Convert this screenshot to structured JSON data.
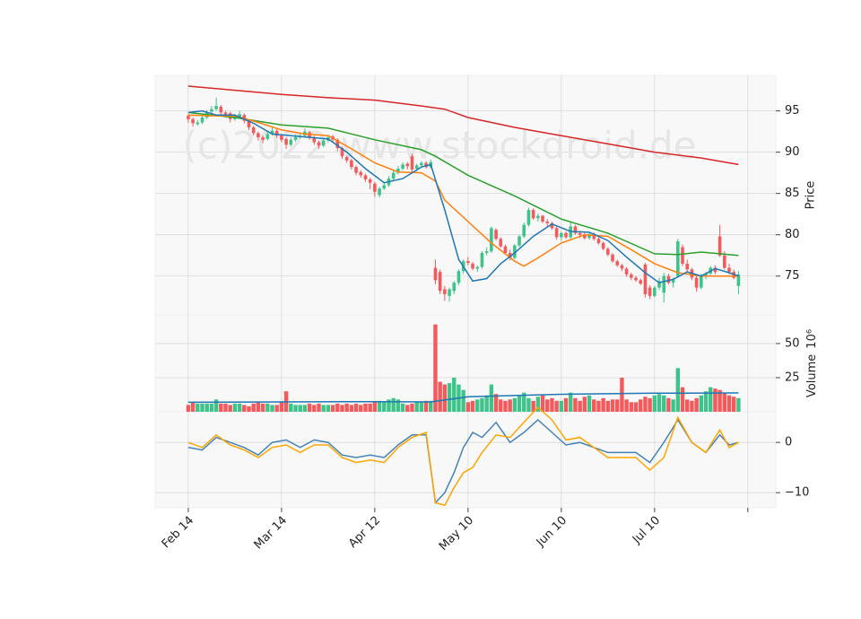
{
  "chart_data": {
    "type": "candlestick",
    "watermark": "(c)2022 www.stockdroid.de",
    "grid": true,
    "xlim": [
      -7.1,
      126
    ],
    "xticks": [
      {
        "value": 0,
        "label": "Feb 14"
      },
      {
        "value": 20,
        "label": "Mar 14"
      },
      {
        "value": 40,
        "label": "Apr 12"
      },
      {
        "value": 60,
        "label": "May 10"
      },
      {
        "value": 80,
        "label": "Jun 10"
      },
      {
        "value": 100,
        "label": "Jul 10"
      },
      {
        "value": 120,
        "label": null
      }
    ],
    "up_color": "#3ec48b",
    "down_color": "#f4595c",
    "candles": {
      "open": [
        94.4,
        94.0,
        93.4,
        93.6,
        94.2,
        94.9,
        95.2,
        95.5,
        94.8,
        94.7,
        94.0,
        94.3,
        94.5,
        93.8,
        93.0,
        92.3,
        91.8,
        91.6,
        92.2,
        92.6,
        92.0,
        91.6,
        90.9,
        91.5,
        91.8,
        92.0,
        92.4,
        91.8,
        91.2,
        90.8,
        91.4,
        91.9,
        91.5,
        90.5,
        89.4,
        89.0,
        88.2,
        87.6,
        87.2,
        86.7,
        86.2,
        84.8,
        85.6,
        86.0,
        86.8,
        87.5,
        88.0,
        88.6,
        89.5,
        88.0,
        88.4,
        88.7,
        88.2,
        76.0,
        75.5,
        73.4,
        72.6,
        73.2,
        74.2,
        75.6,
        76.8,
        76.5,
        75.9,
        76.1,
        77.8,
        78.0,
        80.6,
        79.5,
        78.6,
        77.8,
        77.2,
        78.7,
        79.8,
        81.2,
        83.0,
        82.0,
        82.3,
        81.6,
        81.4,
        80.8,
        79.7,
        80.2,
        79.7,
        81.0,
        80.2,
        80.0,
        79.6,
        80.1,
        79.5,
        79.0,
        78.3,
        77.6,
        76.8,
        76.3,
        75.9,
        75.2,
        74.8,
        74.5,
        76.4,
        73.6,
        72.6,
        73.6,
        73.0,
        75.0,
        74.2,
        75.0,
        78.5,
        76.5,
        75.8,
        74.8,
        73.6,
        75.0,
        75.3,
        76.0,
        79.8,
        77.5,
        76.0,
        75.5,
        73.8
      ],
      "high": [
        94.6,
        94.2,
        93.9,
        94.5,
        95.1,
        95.6,
        96.6,
        95.7,
        95.0,
        94.9,
        94.6,
        95.0,
        94.7,
        94.0,
        93.2,
        92.5,
        92.0,
        92.5,
        93.0,
        92.8,
        92.2,
        91.8,
        91.8,
        92.1,
        92.3,
        92.9,
        92.6,
        92.0,
        91.4,
        91.7,
        92.1,
        92.1,
        91.7,
        90.7,
        89.6,
        89.2,
        88.4,
        87.8,
        87.4,
        86.9,
        86.4,
        85.8,
        86.4,
        87.1,
        87.8,
        88.3,
        88.8,
        88.8,
        89.8,
        88.6,
        88.9,
        88.9,
        89.1,
        77.0,
        75.8,
        73.8,
        73.6,
        74.4,
        75.8,
        77.0,
        77.3,
        76.7,
        76.3,
        78.0,
        78.5,
        81.0,
        80.8,
        79.7,
        78.8,
        78.2,
        78.9,
        80.0,
        81.5,
        83.3,
        83.2,
        82.6,
        82.4,
        81.9,
        81.6,
        81.0,
        80.4,
        80.4,
        81.5,
        81.2,
        80.5,
        80.4,
        80.3,
        80.3,
        79.7,
        79.2,
        78.5,
        77.8,
        77.0,
        76.5,
        76.1,
        75.4,
        75.0,
        74.7,
        76.6,
        73.9,
        73.8,
        74.8,
        75.4,
        75.3,
        74.8,
        79.5,
        78.8,
        77.0,
        76.0,
        75.2,
        75.3,
        75.5,
        76.2,
        76.3,
        81.2,
        78.0,
        76.5,
        75.8,
        75.6
      ],
      "low": [
        93.6,
        93.1,
        93.2,
        93.4,
        94.0,
        94.6,
        95.0,
        94.5,
        94.2,
        93.6,
        93.8,
        94.1,
        93.5,
        92.7,
        92.0,
        91.4,
        91.1,
        91.4,
        92.0,
        91.7,
        91.2,
        90.4,
        90.7,
        91.3,
        91.6,
        91.8,
        91.5,
        90.9,
        90.4,
        90.6,
        91.2,
        91.2,
        90.1,
        89.2,
        88.7,
        87.9,
        87.2,
        86.9,
        86.4,
        85.5,
        84.6,
        84.5,
        85.4,
        85.8,
        86.6,
        87.3,
        87.8,
        87.9,
        87.6,
        87.7,
        88.2,
        88.0,
        88.0,
        74.0,
        72.8,
        72.0,
        71.9,
        72.8,
        73.9,
        75.3,
        76.3,
        75.7,
        75.5,
        75.9,
        77.5,
        77.8,
        79.3,
        78.4,
        77.6,
        76.9,
        77.0,
        78.5,
        79.6,
        81.0,
        81.8,
        81.6,
        81.4,
        81.0,
        80.6,
        79.4,
        79.3,
        79.5,
        79.5,
        80.0,
        79.6,
        79.4,
        79.4,
        79.3,
        78.8,
        78.1,
        77.4,
        76.6,
        76.1,
        75.6,
        74.9,
        74.5,
        74.3,
        73.9,
        72.4,
        72.2,
        72.4,
        73.3,
        71.8,
        74.0,
        73.6,
        74.8,
        76.2,
        75.5,
        74.5,
        73.1,
        73.4,
        74.6,
        75.1,
        75.2,
        77.3,
        75.8,
        75.2,
        74.6,
        72.8
      ],
      "close": [
        94.0,
        93.5,
        93.6,
        94.2,
        94.8,
        95.2,
        95.6,
        94.8,
        94.6,
        94.0,
        94.3,
        94.6,
        93.8,
        93.0,
        92.3,
        91.8,
        91.5,
        92.2,
        92.6,
        92.0,
        91.5,
        90.9,
        91.5,
        91.8,
        92.0,
        92.5,
        91.8,
        91.2,
        90.8,
        91.4,
        91.8,
        91.5,
        90.5,
        89.5,
        89.0,
        88.2,
        87.5,
        87.2,
        86.7,
        86.3,
        85.2,
        85.6,
        86.0,
        86.8,
        87.5,
        88.0,
        88.5,
        88.3,
        87.9,
        88.4,
        88.7,
        88.2,
        88.8,
        74.5,
        73.2,
        72.8,
        73.4,
        74.2,
        75.6,
        76.8,
        76.6,
        75.9,
        76.1,
        77.8,
        78.0,
        80.8,
        79.5,
        78.6,
        77.8,
        77.2,
        78.7,
        79.8,
        81.2,
        83.0,
        82.0,
        82.3,
        81.6,
        81.4,
        80.8,
        79.7,
        80.2,
        79.7,
        81.0,
        80.2,
        80.0,
        79.6,
        80.1,
        79.5,
        79.0,
        78.3,
        77.6,
        76.8,
        76.3,
        75.9,
        75.2,
        74.8,
        74.5,
        74.1,
        72.8,
        72.6,
        73.6,
        74.4,
        75.0,
        74.2,
        74.6,
        79.2,
        76.5,
        75.8,
        74.8,
        73.6,
        75.0,
        75.3,
        76.0,
        75.5,
        77.5,
        76.0,
        75.5,
        74.8,
        75.2
      ],
      "volume": [
        5,
        7,
        6,
        6,
        6,
        6,
        9,
        6,
        6,
        5,
        6,
        6,
        5,
        4,
        6,
        7,
        6,
        6,
        5,
        5,
        7,
        15,
        6,
        5,
        5,
        5,
        6,
        5,
        6,
        5,
        5,
        5,
        6,
        5,
        6,
        5,
        6,
        5,
        6,
        6,
        7,
        8,
        7,
        9,
        10,
        9,
        6,
        5,
        6,
        7,
        7,
        8,
        8,
        64,
        22,
        20,
        21,
        25,
        20,
        16,
        7,
        8,
        9,
        10,
        12,
        20,
        13,
        9,
        8,
        9,
        10,
        12,
        14,
        10,
        8,
        11,
        12,
        9,
        10,
        8,
        8,
        10,
        14,
        10,
        8,
        11,
        12,
        9,
        8,
        10,
        8,
        9,
        9,
        25,
        9,
        7,
        7,
        9,
        11,
        10,
        12,
        13,
        12,
        10,
        9,
        32,
        18,
        9,
        8,
        10,
        12,
        15,
        18,
        17,
        16,
        14,
        12,
        11,
        10
      ]
    },
    "price_panel": {
      "ylabel": "Price",
      "ylim": [
        70.3,
        99.3
      ],
      "yticks": [
        75,
        80,
        85,
        90,
        95
      ],
      "series": [
        {
          "color": "#d62728",
          "x": [
            0,
            10,
            20,
            30,
            40,
            50,
            55,
            60,
            70,
            80,
            90,
            100,
            110,
            118
          ],
          "values": [
            98.0,
            97.5,
            97.0,
            96.6,
            96.3,
            95.6,
            95.2,
            94.2,
            93.0,
            92.0,
            91.0,
            90.0,
            89.3,
            88.5
          ]
        },
        {
          "color": "#2ca02c",
          "x": [
            0,
            10,
            20,
            30,
            40,
            50,
            53,
            60,
            70,
            80,
            90,
            100,
            105,
            110,
            118
          ],
          "values": [
            94.8,
            94.2,
            93.3,
            92.9,
            91.5,
            90.3,
            89.5,
            87.2,
            84.7,
            81.9,
            80.2,
            77.7,
            77.6,
            77.9,
            77.5
          ]
        },
        {
          "color": "#ff7f0e",
          "x": [
            0,
            5,
            10,
            15,
            20,
            25,
            30,
            35,
            40,
            45,
            50,
            53,
            55,
            60,
            65,
            70,
            72,
            75,
            80,
            85,
            90,
            95,
            100,
            105,
            110,
            118
          ],
          "values": [
            94.5,
            94.4,
            94.4,
            93.6,
            92.7,
            92.2,
            92.0,
            90.4,
            88.7,
            87.6,
            87.5,
            86.5,
            84.2,
            81.6,
            79.0,
            76.8,
            76.2,
            77.2,
            79.0,
            80.0,
            79.8,
            78.2,
            76.5,
            75.4,
            75.0,
            75.0
          ]
        },
        {
          "color": "#1f77b4",
          "x": [
            0,
            3,
            6,
            10,
            14,
            18,
            22,
            26,
            30,
            34,
            38,
            42,
            46,
            50,
            52,
            55,
            58,
            61,
            64,
            67,
            70,
            74,
            78,
            82,
            86,
            90,
            94,
            98,
            101,
            104,
            107,
            110,
            113,
            116,
            118
          ],
          "values": [
            94.8,
            95.0,
            94.5,
            94.5,
            93.5,
            92.2,
            92.0,
            91.8,
            91.6,
            90.0,
            88.0,
            86.3,
            86.8,
            88.2,
            88.5,
            83.0,
            77.0,
            74.4,
            74.7,
            76.5,
            77.8,
            79.8,
            81.3,
            80.4,
            80.3,
            79.3,
            77.3,
            75.4,
            74.2,
            74.6,
            75.5,
            75.0,
            75.9,
            75.4,
            75.0
          ]
        }
      ]
    },
    "volume_panel": {
      "ylabel": "Volume",
      "scale_label": "10⁶",
      "ylim": [
        0,
        71
      ],
      "yticks": [
        25,
        50
      ],
      "series": [
        {
          "color": "#1f77b4",
          "x": [
            0,
            20,
            40,
            52,
            60,
            80,
            100,
            118
          ],
          "values": [
            7,
            7.2,
            7.4,
            7.2,
            11,
            12.8,
            13.6,
            13.8
          ]
        }
      ]
    },
    "indicator_panel": {
      "ylim": [
        -13,
        6.1
      ],
      "yticks": [
        {
          "value": -10,
          "label": "−10"
        },
        0
      ],
      "series": [
        {
          "color": "#4682b4",
          "x": [
            0,
            3,
            6,
            9,
            12,
            15,
            18,
            21,
            24,
            27,
            30,
            33,
            36,
            39,
            42,
            45,
            48,
            51,
            53,
            55,
            57,
            59,
            61,
            63,
            66,
            69,
            72,
            75,
            78,
            81,
            84,
            87,
            90,
            93,
            96,
            99,
            102,
            105,
            108,
            111,
            114,
            116,
            118
          ],
          "values": [
            -1,
            -1.5,
            1,
            0,
            -1,
            -2.5,
            0,
            0.5,
            -1,
            0.5,
            0,
            -2.5,
            -3,
            -2.5,
            -3,
            -0.5,
            1.5,
            1.5,
            -12,
            -10,
            -6,
            -1,
            2,
            1,
            4,
            0,
            2,
            4.5,
            2,
            -0.5,
            0,
            -1,
            -2,
            -2,
            -2,
            -4,
            0,
            4.5,
            0,
            -2,
            1.5,
            -0.5,
            0
          ]
        },
        {
          "color": "#ffa500",
          "x": [
            0,
            3,
            6,
            9,
            12,
            15,
            18,
            21,
            24,
            27,
            30,
            33,
            36,
            39,
            42,
            45,
            48,
            51,
            53,
            55,
            57,
            59,
            61,
            63,
            66,
            69,
            72,
            75,
            78,
            81,
            84,
            87,
            90,
            93,
            96,
            99,
            102,
            105,
            108,
            111,
            114,
            116,
            118
          ],
          "values": [
            0,
            -1,
            1.5,
            -0.5,
            -1.5,
            -3,
            -1,
            -0.5,
            -2,
            -0.5,
            -0.5,
            -3,
            -4,
            -3.5,
            -4,
            -1,
            1,
            2,
            -12,
            -12.5,
            -9,
            -6,
            -5,
            -2,
            1.5,
            1,
            4,
            7,
            4.5,
            0.5,
            1,
            -1,
            -3,
            -3,
            -3,
            -5.5,
            -3,
            5,
            0,
            -2,
            2.5,
            -1,
            0
          ]
        }
      ]
    }
  }
}
